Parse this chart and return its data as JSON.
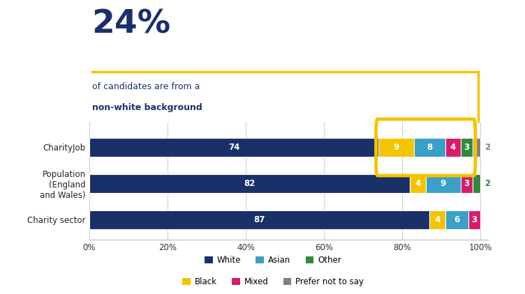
{
  "rows": [
    "CharityJob",
    "Population\n(England\nand Wales)",
    "Charity sector"
  ],
  "categories": [
    "White",
    "Black",
    "Asian",
    "Mixed",
    "Other",
    "Prefer not to say"
  ],
  "colors": [
    "#1a3068",
    "#f5c400",
    "#3aa0c8",
    "#d81b6a",
    "#2e8b3c",
    "#808080"
  ],
  "values": [
    [
      74,
      9,
      8,
      4,
      3,
      2
    ],
    [
      82,
      4,
      9,
      3,
      2,
      0
    ],
    [
      87,
      4,
      6,
      3,
      0,
      0
    ]
  ],
  "bar_labels_inside": [
    [
      "74",
      "9",
      "8",
      "4",
      "3",
      ""
    ],
    [
      "82",
      "4",
      "9",
      "3",
      "",
      ""
    ],
    [
      "87",
      "4",
      "6",
      "3",
      "",
      ""
    ]
  ],
  "outside_labels": [
    {
      "val": 2,
      "color": "#808080",
      "row": 0
    },
    {
      "val": 2,
      "color": "#2e8b3c",
      "row": 1
    }
  ],
  "big_pct": "24%",
  "subtitle_line1": "of candidates are from a",
  "subtitle_line2": "non-white background",
  "bg_color": "#ffffff",
  "title_color": "#1b2f6e",
  "subtitle_color": "#1b2f6e",
  "bar_height": 0.52,
  "legend_row1_labels": [
    "White",
    "Asian",
    "Other"
  ],
  "legend_row1_colors": [
    "#1a3068",
    "#3aa0c8",
    "#2e8b3c"
  ],
  "legend_row2_labels": [
    "Black",
    "Mixed",
    "Prefer not to say"
  ],
  "legend_row2_colors": [
    "#f5c400",
    "#d81b6a",
    "#808080"
  ],
  "oval_color": "#f5c400",
  "line_color": "#f5c400"
}
